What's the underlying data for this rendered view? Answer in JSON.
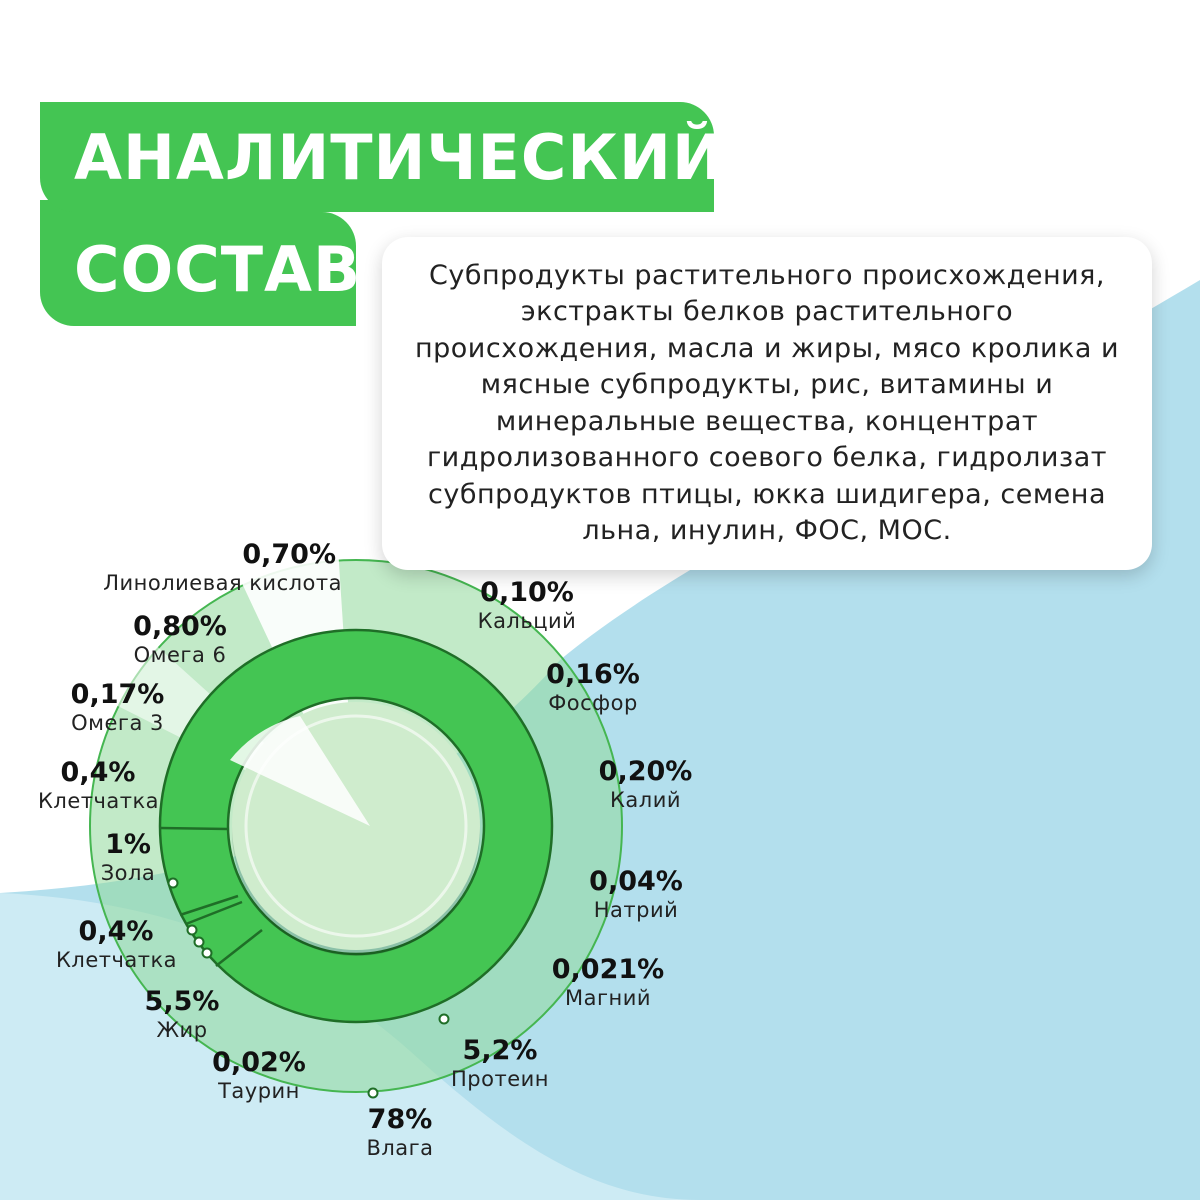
{
  "title": {
    "line1": "АНАЛИТИЧЕСКИЙ",
    "line2": "СОСТАВ"
  },
  "composition_text": "Субпродукты растительного происхождения, экстракты белков растительного происхождения, масла и жиры, мясо кролика и мясные субпродукты, рис, витамины и минеральные вещества, концентрат гидролизованного соевого белка, гидролизат субпродуктов птицы, юкка шидигера, семена льна, инулин, ФОС, МОС.",
  "colors": {
    "accent_green": "#44c553",
    "light_green": "#c8ecc9",
    "ring_stroke": "#2e8a36",
    "background_blue": "#b3dfed"
  },
  "chart_data": {
    "type": "pie",
    "style": "nested donut",
    "outer_items": [
      {
        "name": "Линолиевая кислота",
        "value": "0,70%"
      },
      {
        "name": "Кальций",
        "value": "0,10%"
      },
      {
        "name": "Фосфор",
        "value": "0,16%"
      },
      {
        "name": "Калий",
        "value": "0,20%"
      },
      {
        "name": "Натрий",
        "value": "0,04%"
      },
      {
        "name": "Магний",
        "value": "0,021%"
      },
      {
        "name": "Омега 6",
        "value": "0,80%"
      },
      {
        "name": "Омега 3",
        "value": "0,17%"
      },
      {
        "name": "Клетчатка",
        "value": "0,4%"
      }
    ],
    "main_items": [
      {
        "name": "Зола",
        "value": "1%"
      },
      {
        "name": "Клетчатка",
        "value": "0,4%"
      },
      {
        "name": "Жир",
        "value": "5,5%"
      },
      {
        "name": "Таурин",
        "value": "0,02%"
      },
      {
        "name": "Протеин",
        "value": "5,2%"
      },
      {
        "name": "Влага",
        "value": "78%"
      }
    ]
  }
}
